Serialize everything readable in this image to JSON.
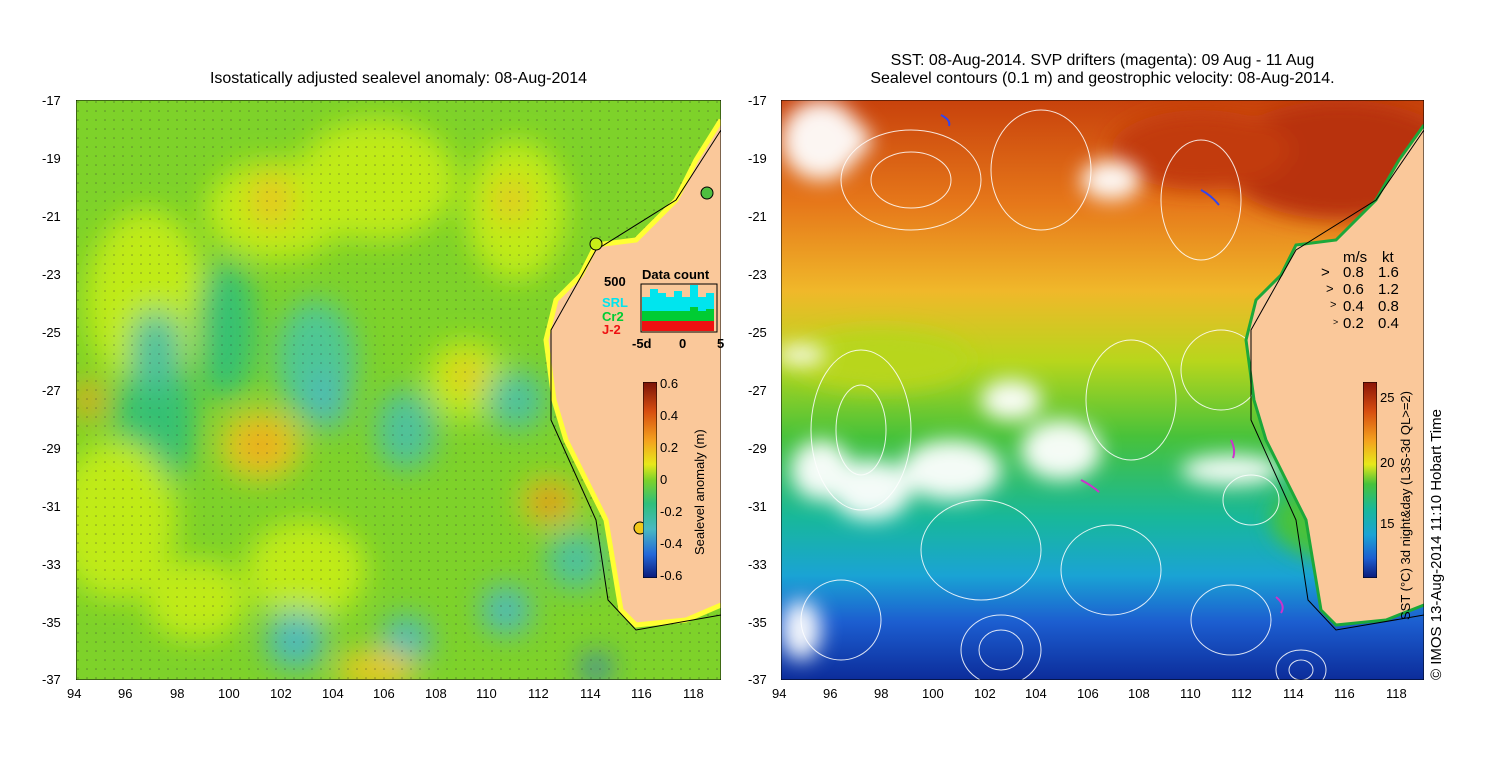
{
  "left_panel": {
    "title": "Isostatically adjusted sealevel anomaly: 08-Aug-2014",
    "colorbar_label": "Sealevel anomaly (m)",
    "colorbar_ticks": [
      "0.6",
      "0.4",
      "0.2",
      "0",
      "-0.2",
      "-0.4",
      "-0.6"
    ],
    "colorbar_range": [
      -0.6,
      0.6
    ],
    "inset": {
      "title": "Data count",
      "ymax_label": "500",
      "series": [
        {
          "name": "SRL",
          "color": "#00e5ee"
        },
        {
          "name": "Cr2",
          "color": "#00cc33"
        },
        {
          "name": "J-2",
          "color": "#ee1111"
        }
      ],
      "x_ticks": [
        "-5d",
        "0",
        "5"
      ]
    }
  },
  "right_panel": {
    "title_line1": "SST: 08-Aug-2014. SVP drifters (magenta): 09 Aug - 11 Aug",
    "title_line2": "Sealevel contours (0.1 m) and geostrophic velocity: 08-Aug-2014.",
    "colorbar_label": "SST (°C) 3d night&day (L3S-3d QL>=2)",
    "colorbar_ticks": [
      "25",
      "20",
      "15"
    ],
    "colorbar_range": [
      12,
      26
    ],
    "vector_legend": {
      "header_ms": "m/s",
      "header_kt": "kt",
      "rows": [
        {
          "ms": "0.8",
          "kt": "1.6"
        },
        {
          "ms": "0.6",
          "kt": "1.2"
        },
        {
          "ms": "0.4",
          "kt": "0.8"
        },
        {
          "ms": "0.2",
          "kt": "0.4"
        }
      ]
    },
    "credit": "© IMOS 13-Aug-2014 11:10 Hobart Time"
  },
  "axes": {
    "x_ticks": [
      "94",
      "96",
      "98",
      "100",
      "102",
      "104",
      "106",
      "108",
      "110",
      "112",
      "114",
      "116",
      "118"
    ],
    "y_ticks": [
      "-17",
      "-19",
      "-21",
      "-23",
      "-25",
      "-27",
      "-29",
      "-31",
      "-33",
      "-35",
      "-37"
    ],
    "lon_range": [
      94,
      119
    ],
    "lat_range": [
      -37,
      -17
    ]
  },
  "colors": {
    "land": "#fac89a",
    "sla_base": "#7dd028",
    "sst_warm": "#d9520a",
    "sst_cool": "#0a3ea8"
  }
}
